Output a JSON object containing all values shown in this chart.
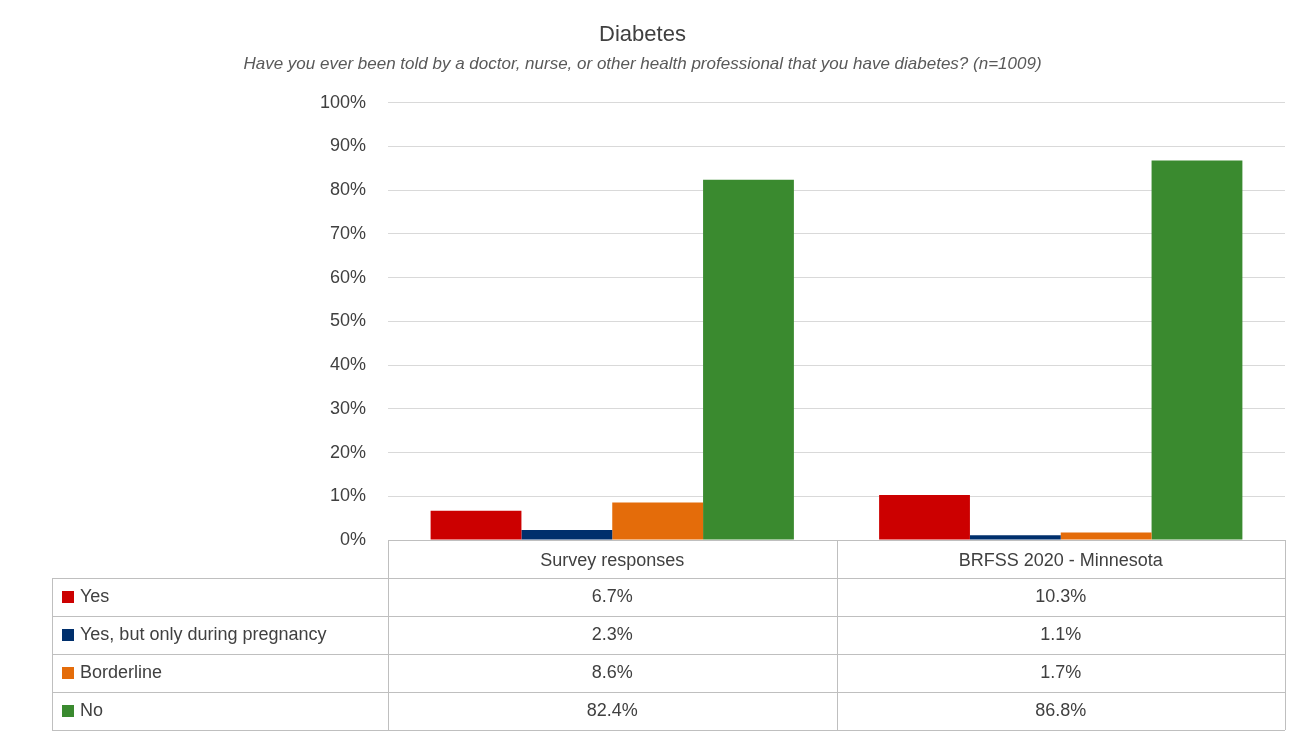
{
  "chart_data": {
    "type": "bar",
    "title": "Diabetes",
    "subtitle": "Have you ever been told by a doctor, nurse, or other health professional that you have diabetes? (n=1009)",
    "categories": [
      "Survey responses",
      "BRFSS 2020 - Minnesota"
    ],
    "series": [
      {
        "name": "Yes",
        "color": "#cc0000",
        "values": [
          6.7,
          10.3
        ],
        "value_labels": [
          "6.7%",
          "10.3%"
        ]
      },
      {
        "name": "Yes, but only during pregnancy",
        "color": "#002f6c",
        "values": [
          2.3,
          1.1
        ],
        "value_labels": [
          "2.3%",
          "1.1%"
        ]
      },
      {
        "name": "Borderline",
        "color": "#e46c0a",
        "values": [
          8.6,
          1.7
        ],
        "value_labels": [
          "8.6%",
          "1.7%"
        ]
      },
      {
        "name": "No",
        "color": "#3a8a2f",
        "values": [
          82.4,
          86.8
        ],
        "value_labels": [
          "82.4%",
          "86.8%"
        ]
      }
    ],
    "ylim": [
      0,
      100
    ],
    "yticks": [
      {
        "value": 0,
        "label": "0%"
      },
      {
        "value": 10,
        "label": "10%"
      },
      {
        "value": 20,
        "label": "20%"
      },
      {
        "value": 30,
        "label": "30%"
      },
      {
        "value": 40,
        "label": "40%"
      },
      {
        "value": 50,
        "label": "50%"
      },
      {
        "value": 60,
        "label": "60%"
      },
      {
        "value": 70,
        "label": "70%"
      },
      {
        "value": 80,
        "label": "80%"
      },
      {
        "value": 90,
        "label": "90%"
      },
      {
        "value": 100,
        "label": "100%"
      }
    ],
    "grid": "y",
    "legend": "bottom"
  }
}
